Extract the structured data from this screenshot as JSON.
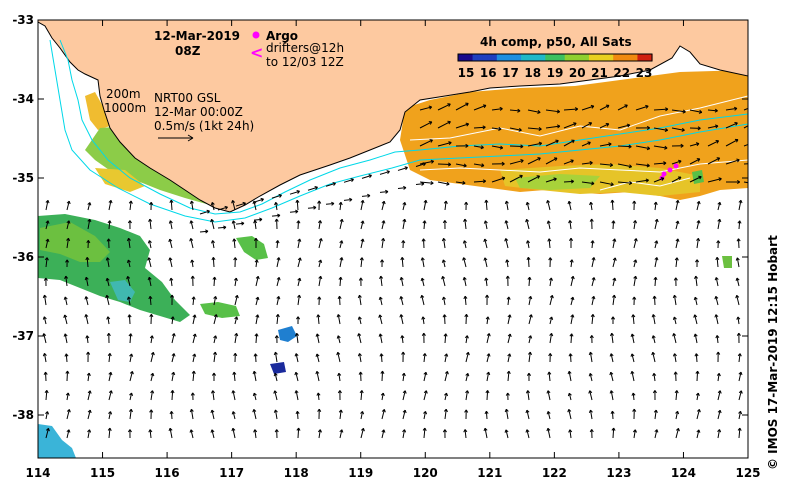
{
  "header": {
    "date": "12-Mar-2019",
    "time": "08Z",
    "argo_label": "Argo",
    "drifters_line1": "drifters@12h",
    "drifters_line2": "to 12/03 12Z"
  },
  "colorbar": {
    "title": "4h comp, p50, All Sats",
    "ticks": [
      "15",
      "16",
      "17",
      "18",
      "19",
      "20",
      "21",
      "22",
      "23"
    ],
    "colors": [
      "#1a0a8c",
      "#1f3fbf",
      "#1f8fe0",
      "#20b8c8",
      "#3cc060",
      "#8fd030",
      "#e8d020",
      "#f08a10",
      "#d02010"
    ]
  },
  "legend": {
    "contour_200": "200m",
    "contour_1000": "1000m",
    "product_line1": "NRT00 GSL",
    "product_line2": "12-Mar 00:00Z",
    "scale_label": "0.5m/s (1kt 24h)"
  },
  "axes": {
    "lon_ticks": [
      "114",
      "115",
      "116",
      "117",
      "118",
      "119",
      "120",
      "121",
      "122",
      "123",
      "124",
      "125"
    ],
    "lat_ticks": [
      "-33",
      "-34",
      "-35",
      "-36",
      "-37",
      "-38"
    ]
  },
  "credit": "© IMOS 17-Mar-2019 12:15 Hobart",
  "colors": {
    "land": "#fdc9a0",
    "ocean": "#ffffff",
    "contour": "#00d8e8",
    "argo": "#ff00ff",
    "sst_warm": "#f2a020",
    "sst_mid": "#9cd040",
    "sst_cool": "#40a860"
  }
}
